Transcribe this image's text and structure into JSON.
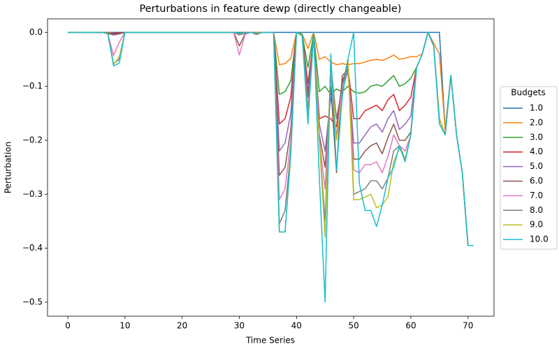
{
  "chart_data": {
    "type": "line",
    "title": "Perturbations in feature dewp (directly changeable)",
    "xlabel": "Time Series",
    "ylabel": "Perturbation",
    "legend_title": "Budgets",
    "legend": "center right outside",
    "x": [
      0,
      1,
      2,
      3,
      4,
      5,
      6,
      7,
      8,
      9,
      10,
      11,
      12,
      13,
      14,
      15,
      16,
      17,
      18,
      19,
      20,
      21,
      22,
      23,
      24,
      25,
      26,
      27,
      28,
      29,
      30,
      31,
      32,
      33,
      34,
      35,
      36,
      37,
      38,
      39,
      40,
      41,
      42,
      43,
      44,
      45,
      46,
      47,
      48,
      49,
      50,
      51,
      52,
      53,
      54,
      55,
      56,
      57,
      58,
      59,
      60,
      61,
      62,
      63,
      64,
      65,
      66,
      67,
      68,
      69,
      70,
      71
    ],
    "xlim": [
      -3.55,
      74.55
    ],
    "xticks": [
      0,
      10,
      20,
      30,
      40,
      50,
      60,
      70
    ],
    "ylim": [
      -0.526,
      0.025
    ],
    "yticks": [
      {
        "value": -0.5,
        "label": "−0.5"
      },
      {
        "value": -0.4,
        "label": "−0.4"
      },
      {
        "value": -0.3,
        "label": "−0.3"
      },
      {
        "value": -0.2,
        "label": "−0.2"
      },
      {
        "value": -0.1,
        "label": "−0.1"
      },
      {
        "value": 0,
        "label": "0.0"
      }
    ],
    "series": [
      {
        "name": "1.0",
        "color": "#1f77b4",
        "values": [
          0,
          0,
          0,
          0,
          0,
          0,
          0,
          0,
          0,
          0,
          0,
          0,
          0,
          0,
          0,
          0,
          0,
          0,
          0,
          0,
          0,
          0,
          0,
          0,
          0,
          0,
          0,
          0,
          0,
          0,
          0,
          0,
          0,
          0,
          0,
          0,
          0,
          0,
          0,
          0,
          0,
          0,
          0,
          0,
          0,
          0,
          0,
          0,
          0,
          0,
          0,
          0,
          0,
          0,
          0,
          0,
          0,
          0,
          0,
          0,
          0,
          0,
          0,
          0,
          0,
          0,
          -0.18,
          -0.08,
          -0.19,
          -0.26,
          -0.395,
          -0.395
        ]
      },
      {
        "name": "2.0",
        "color": "#ff7f0e",
        "values": [
          0,
          0,
          0,
          0,
          0,
          0,
          0,
          0,
          -0.003,
          -0.002,
          0,
          0,
          0,
          0,
          0,
          0,
          0,
          0,
          0,
          0,
          0,
          0,
          0,
          0,
          0,
          0,
          0,
          0,
          0,
          0,
          -0.002,
          0,
          0,
          0,
          0,
          0,
          0,
          -0.06,
          -0.058,
          -0.048,
          0,
          -0.003,
          -0.03,
          0,
          -0.05,
          -0.045,
          -0.055,
          -0.06,
          -0.058,
          -0.06,
          -0.058,
          -0.058,
          -0.055,
          -0.052,
          -0.05,
          -0.052,
          -0.048,
          -0.042,
          -0.05,
          -0.048,
          -0.045,
          -0.045,
          -0.04,
          0,
          -0.02,
          -0.04,
          -0.18,
          -0.08,
          -0.19,
          -0.26,
          -0.395,
          -0.395
        ]
      },
      {
        "name": "3.0",
        "color": "#2ca02c",
        "values": [
          0,
          0,
          0,
          0,
          0,
          0,
          0,
          -0.002,
          -0.003,
          -0.002,
          0,
          0,
          0,
          0,
          0,
          0,
          0,
          0,
          0,
          0,
          0,
          0,
          0,
          0,
          0,
          0,
          0,
          0,
          0,
          0,
          -0.003,
          -0.001,
          0,
          -0.002,
          0,
          0,
          0,
          -0.115,
          -0.11,
          -0.09,
          0,
          -0.004,
          -0.065,
          -0.003,
          -0.11,
          -0.1,
          -0.115,
          -0.105,
          -0.11,
          -0.1,
          -0.11,
          -0.113,
          -0.11,
          -0.1,
          -0.097,
          -0.1,
          -0.09,
          -0.08,
          -0.1,
          -0.095,
          -0.085,
          -0.065,
          -0.04,
          0,
          -0.025,
          -0.16,
          -0.19,
          -0.08,
          -0.19,
          -0.26,
          -0.395,
          -0.395
        ]
      },
      {
        "name": "4.0",
        "color": "#d62728",
        "values": [
          0,
          0,
          0,
          0,
          0,
          0,
          0,
          -0.003,
          -0.002,
          -0.001,
          0,
          0,
          0,
          0,
          0,
          0,
          0,
          0,
          0,
          0,
          0,
          0,
          0,
          0,
          0,
          0,
          0,
          0,
          0,
          0,
          -0.004,
          0,
          0,
          -0.002,
          0,
          0,
          0,
          -0.17,
          -0.16,
          -0.12,
          0,
          -0.005,
          -0.095,
          -0.01,
          -0.16,
          -0.155,
          -0.16,
          -0.175,
          -0.09,
          -0.065,
          -0.16,
          -0.16,
          -0.145,
          -0.14,
          -0.135,
          -0.145,
          -0.125,
          -0.115,
          -0.145,
          -0.135,
          -0.12,
          -0.065,
          -0.04,
          0,
          -0.025,
          -0.16,
          -0.19,
          -0.08,
          -0.19,
          -0.26,
          -0.395,
          -0.395
        ]
      },
      {
        "name": "5.0",
        "color": "#9467bd",
        "values": [
          0,
          0,
          0,
          0,
          0,
          0,
          0,
          -0.002,
          -0.005,
          -0.003,
          0,
          0,
          0,
          0,
          0,
          0,
          0,
          0,
          0,
          0,
          0,
          0,
          0,
          0,
          0,
          0,
          0,
          0,
          0,
          0,
          -0.005,
          -0.002,
          0,
          -0.003,
          0,
          0,
          0,
          -0.22,
          -0.205,
          -0.15,
          0,
          -0.005,
          -0.11,
          -0.01,
          -0.17,
          -0.22,
          -0.12,
          -0.19,
          -0.11,
          -0.07,
          -0.205,
          -0.205,
          -0.19,
          -0.175,
          -0.17,
          -0.185,
          -0.16,
          -0.145,
          -0.18,
          -0.17,
          -0.155,
          -0.065,
          -0.04,
          0,
          -0.025,
          -0.16,
          -0.19,
          -0.08,
          -0.19,
          -0.26,
          -0.395,
          -0.395
        ]
      },
      {
        "name": "6.0",
        "color": "#8c564b",
        "values": [
          0,
          0,
          0,
          0,
          0,
          0,
          0,
          -0.001,
          -0.004,
          -0.002,
          0,
          0,
          0,
          0,
          0,
          0,
          0,
          0,
          0,
          0,
          0,
          0,
          0,
          0,
          0,
          0,
          0,
          0,
          0,
          0,
          -0.025,
          -0.003,
          0,
          -0.004,
          0,
          0,
          0,
          -0.265,
          -0.25,
          -0.18,
          0,
          -0.006,
          -0.12,
          -0.01,
          -0.19,
          -0.25,
          -0.1,
          -0.26,
          -0.08,
          -0.07,
          -0.235,
          -0.235,
          -0.22,
          -0.21,
          -0.205,
          -0.225,
          -0.195,
          -0.17,
          -0.2,
          -0.2,
          -0.185,
          -0.065,
          -0.04,
          0,
          -0.025,
          -0.16,
          -0.19,
          -0.08,
          -0.19,
          -0.26,
          -0.395,
          -0.395
        ]
      },
      {
        "name": "7.0",
        "color": "#e377c2",
        "values": [
          0,
          0,
          0,
          0,
          0,
          0,
          0,
          -0.003,
          -0.043,
          -0.018,
          0,
          0,
          0,
          0,
          0,
          0,
          0,
          0,
          0,
          0,
          0,
          0,
          0,
          0,
          0,
          0,
          0,
          0,
          0,
          0,
          -0.042,
          -0.004,
          0,
          -0.003,
          0,
          0,
          0,
          -0.31,
          -0.29,
          -0.2,
          0,
          -0.006,
          -0.14,
          -0.01,
          -0.2,
          -0.29,
          -0.08,
          -0.2,
          -0.1,
          -0.06,
          -0.255,
          -0.26,
          -0.245,
          -0.245,
          -0.24,
          -0.26,
          -0.23,
          -0.19,
          -0.21,
          -0.22,
          -0.19,
          -0.065,
          -0.04,
          0,
          -0.025,
          -0.16,
          -0.19,
          -0.08,
          -0.19,
          -0.26,
          -0.395,
          -0.395
        ]
      },
      {
        "name": "8.0",
        "color": "#7f7f7f",
        "values": [
          0,
          0,
          0,
          0,
          0,
          0,
          0,
          -0.002,
          -0.058,
          -0.05,
          0,
          0,
          0,
          0,
          0,
          0,
          0,
          0,
          0,
          0,
          0,
          0,
          0,
          0,
          0,
          0,
          0,
          0,
          0,
          0,
          -0.004,
          -0.002,
          0,
          -0.003,
          0,
          0,
          0,
          -0.355,
          -0.33,
          -0.22,
          0,
          -0.007,
          -0.15,
          -0.01,
          -0.2,
          -0.35,
          -0.06,
          -0.16,
          -0.1,
          -0.05,
          -0.3,
          -0.295,
          -0.29,
          -0.275,
          -0.275,
          -0.29,
          -0.27,
          -0.22,
          -0.21,
          -0.235,
          -0.19,
          -0.065,
          -0.04,
          0,
          -0.025,
          -0.16,
          -0.19,
          -0.08,
          -0.19,
          -0.26,
          -0.395,
          -0.395
        ]
      },
      {
        "name": "9.0",
        "color": "#bcbd22",
        "values": [
          0,
          0,
          0,
          0,
          0,
          0,
          0,
          -0.003,
          -0.06,
          -0.045,
          0,
          0,
          0,
          0,
          0,
          0,
          0,
          0,
          0,
          0,
          0,
          0,
          0,
          0,
          0,
          0,
          0,
          0,
          0,
          0,
          -0.003,
          -0.001,
          0,
          -0.002,
          0,
          0,
          0,
          -0.37,
          -0.37,
          -0.23,
          0,
          -0.007,
          -0.16,
          -0.01,
          -0.2,
          -0.38,
          -0.05,
          -0.2,
          -0.12,
          -0.05,
          -0.31,
          -0.31,
          -0.305,
          -0.3,
          -0.325,
          -0.32,
          -0.305,
          -0.24,
          -0.215,
          -0.235,
          -0.19,
          -0.065,
          -0.04,
          0,
          -0.025,
          -0.16,
          -0.19,
          -0.08,
          -0.19,
          -0.26,
          -0.395,
          -0.395
        ]
      },
      {
        "name": "10.0",
        "color": "#17becf",
        "values": [
          0,
          0,
          0,
          0,
          0,
          0,
          0,
          -0.002,
          -0.062,
          -0.057,
          0,
          0,
          0,
          0,
          0,
          0,
          0,
          0,
          0,
          0,
          0,
          0,
          0,
          0,
          0,
          0,
          0,
          0,
          0,
          0,
          -0.002,
          -0.001,
          0,
          -0.002,
          0,
          0,
          0,
          -0.37,
          -0.37,
          -0.22,
          0,
          -0.005,
          -0.17,
          0,
          -0.27,
          -0.5,
          -0.04,
          -0.255,
          -0.12,
          -0.05,
          0,
          -0.28,
          -0.33,
          -0.33,
          -0.36,
          -0.32,
          -0.27,
          -0.25,
          -0.21,
          -0.24,
          -0.19,
          -0.065,
          -0.04,
          0,
          -0.025,
          -0.17,
          -0.19,
          -0.08,
          -0.19,
          -0.26,
          -0.395,
          -0.395
        ]
      }
    ]
  }
}
